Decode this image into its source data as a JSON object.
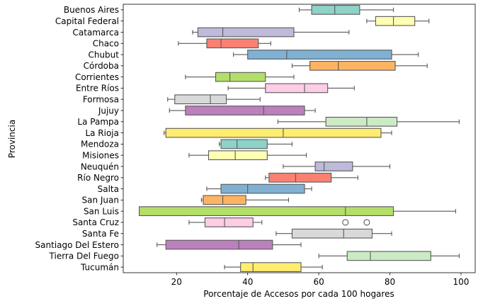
{
  "chart_data": {
    "type": "boxplot",
    "orientation": "horizontal",
    "title": "",
    "xlabel": "Porcentaje de Accesos por cada 100 hogares",
    "ylabel": "Provincia",
    "xlim": [
      5,
      104
    ],
    "xticks": [
      20,
      40,
      60,
      80,
      100
    ],
    "grid": false,
    "legend": "none",
    "palette": "Set3",
    "colors": [
      "#8dd3c7",
      "#ffffb3",
      "#bebada",
      "#fb8072",
      "#80b1d3",
      "#fdb462",
      "#b3de69",
      "#fccde5",
      "#d9d9d9",
      "#bc80bd",
      "#ccebc5",
      "#ffed6f"
    ],
    "categories": [
      "Buenos Aires",
      "Capital Federal",
      "Catamarca",
      "Chaco",
      "Chubut",
      "Córdoba",
      "Corrientes",
      "Entre Ríos",
      "Formosa",
      "Jujuy",
      "La Pampa",
      "La Rioja",
      "Mendoza",
      "Misiones",
      "Neuquén",
      "Río Negro",
      "Salta",
      "San Juan",
      "San Luis",
      "Santa Cruz",
      "Santa Fe",
      "Santiago Del Estero",
      "Tierra Del Fuego",
      "Tucumán"
    ],
    "boxes": [
      {
        "min": 54.5,
        "q1": 58.0,
        "median": 64.5,
        "q3": 71.5,
        "max": 81.0,
        "outliers": []
      },
      {
        "min": 73.5,
        "q1": 76.0,
        "median": 81.0,
        "q3": 87.0,
        "max": 91.0,
        "outliers": []
      },
      {
        "min": 24.5,
        "q1": 26.0,
        "median": 33.0,
        "q3": 53.0,
        "max": 68.5,
        "outliers": []
      },
      {
        "min": 20.5,
        "q1": 28.5,
        "median": 32.5,
        "q3": 43.0,
        "max": 46.5,
        "outliers": []
      },
      {
        "min": 36.0,
        "q1": 40.0,
        "median": 51.0,
        "q3": 80.5,
        "max": 88.0,
        "outliers": []
      },
      {
        "min": 52.5,
        "q1": 57.5,
        "median": 65.5,
        "q3": 81.5,
        "max": 90.5,
        "outliers": []
      },
      {
        "min": 22.5,
        "q1": 31.0,
        "median": 35.0,
        "q3": 45.0,
        "max": 53.0,
        "outliers": []
      },
      {
        "min": 34.5,
        "q1": 45.0,
        "median": 56.0,
        "q3": 62.5,
        "max": 70.0,
        "outliers": []
      },
      {
        "min": 17.5,
        "q1": 19.5,
        "median": 29.5,
        "q3": 34.0,
        "max": 43.5,
        "outliers": []
      },
      {
        "min": 18.0,
        "q1": 22.5,
        "median": 44.5,
        "q3": 56.0,
        "max": 59.0,
        "outliers": []
      },
      {
        "min": 48.5,
        "q1": 62.0,
        "median": 73.5,
        "q3": 82.0,
        "max": 99.5,
        "outliers": []
      },
      {
        "min": 16.5,
        "q1": 17.0,
        "median": 50.0,
        "q3": 77.5,
        "max": 80.5,
        "outliers": []
      },
      {
        "min": 32.0,
        "q1": 32.5,
        "median": 37.0,
        "q3": 45.5,
        "max": 52.5,
        "outliers": []
      },
      {
        "min": 23.5,
        "q1": 29.0,
        "median": 36.5,
        "q3": 45.5,
        "max": 56.5,
        "outliers": []
      },
      {
        "min": 50.0,
        "q1": 59.0,
        "median": 61.5,
        "q3": 69.5,
        "max": 80.0,
        "outliers": []
      },
      {
        "min": 45.0,
        "q1": 46.0,
        "median": 53.5,
        "q3": 63.5,
        "max": 71.0,
        "outliers": []
      },
      {
        "min": 28.5,
        "q1": 32.5,
        "median": 40.0,
        "q3": 56.0,
        "max": 58.0,
        "outliers": []
      },
      {
        "min": 27.0,
        "q1": 27.5,
        "median": 33.0,
        "q3": 39.5,
        "max": 51.5,
        "outliers": []
      },
      {
        "min": 9.5,
        "q1": 9.5,
        "median": 67.5,
        "q3": 81.0,
        "max": 98.5,
        "outliers": []
      },
      {
        "min": 23.5,
        "q1": 28.0,
        "median": 33.5,
        "q3": 41.5,
        "max": 44.0,
        "outliers": [
          67.5,
          73.5
        ]
      },
      {
        "min": 48.0,
        "q1": 52.5,
        "median": 67.0,
        "q3": 75.0,
        "max": 80.5,
        "outliers": []
      },
      {
        "min": 14.5,
        "q1": 17.0,
        "median": 37.5,
        "q3": 47.0,
        "max": 55.0,
        "outliers": []
      },
      {
        "min": 60.0,
        "q1": 68.0,
        "median": 74.5,
        "q3": 91.5,
        "max": 99.5,
        "outliers": []
      },
      {
        "min": 33.5,
        "q1": 38.0,
        "median": 41.5,
        "q3": 55.0,
        "max": 61.0,
        "outliers": []
      }
    ]
  }
}
